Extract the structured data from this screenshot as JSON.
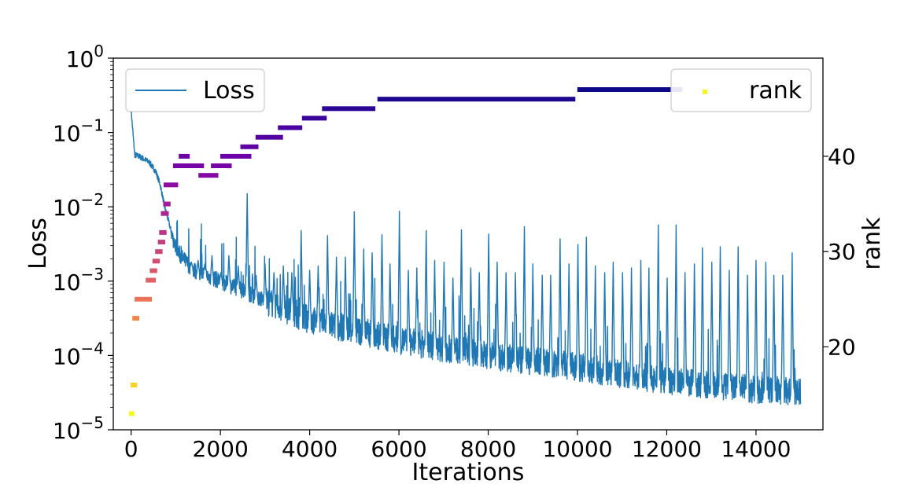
{
  "chart_data": {
    "type": "line",
    "xlabel": "Iterations",
    "ylabel_left": "Loss",
    "ylabel_right": "rank",
    "y_scale_left": "log",
    "xlim": [
      -400,
      15500
    ],
    "ylim_left": [
      1e-05,
      1
    ],
    "ylim_right": [
      11.3,
      50.3
    ],
    "x_ticks": [
      0,
      2000,
      4000,
      6000,
      8000,
      10000,
      12000,
      14000
    ],
    "x_tick_labels": [
      "0",
      "2000",
      "4000",
      "6000",
      "8000",
      "10000",
      "12000",
      "14000"
    ],
    "y_left_ticks": [
      {
        "base": "10",
        "exp": "0",
        "value": 1
      },
      {
        "base": "10",
        "exp": "−1",
        "value": 0.1
      },
      {
        "base": "10",
        "exp": "−2",
        "value": 0.01
      },
      {
        "base": "10",
        "exp": "−3",
        "value": 0.001
      },
      {
        "base": "10",
        "exp": "−4",
        "value": 0.0001
      },
      {
        "base": "10",
        "exp": "−5",
        "value": 1e-05
      }
    ],
    "y_right_ticks": [
      20,
      30,
      40
    ],
    "legend_left": {
      "label": "Loss",
      "placement": "upper-left",
      "color": "#1f77b4"
    },
    "legend_right": {
      "label": "rank",
      "placement": "upper-right",
      "color": "#f0f921"
    },
    "grid": false,
    "loss_series": {
      "name": "Loss",
      "color": "#1f77b4",
      "x_max": 15000,
      "anchors": [
        [
          0,
          0.2
        ],
        [
          80,
          0.05
        ],
        [
          200,
          0.047
        ],
        [
          400,
          0.04
        ],
        [
          550,
          0.03
        ],
        [
          650,
          0.02
        ],
        [
          750,
          0.01
        ],
        [
          850,
          0.006
        ],
        [
          950,
          0.0035
        ],
        [
          1100,
          0.0022
        ],
        [
          1400,
          0.0014
        ],
        [
          2000,
          0.001
        ],
        [
          3000,
          0.00055
        ],
        [
          4000,
          0.0003
        ],
        [
          5000,
          0.00022
        ],
        [
          6000,
          0.00016
        ],
        [
          8000,
          0.0001
        ],
        [
          10000,
          7e-05
        ],
        [
          12000,
          4.5e-05
        ],
        [
          14000,
          3.5e-05
        ],
        [
          15000,
          3.2e-05
        ]
      ],
      "spikes": [
        [
          1180,
          0.0016
        ],
        [
          1350,
          0.0018
        ],
        [
          1500,
          0.0019
        ],
        [
          1650,
          0.0017
        ],
        [
          1810,
          0.0022
        ],
        [
          2010,
          0.0013
        ],
        [
          2190,
          0.0022
        ],
        [
          2400,
          0.0016
        ],
        [
          2600,
          0.015
        ],
        [
          2800,
          0.0012
        ],
        [
          3000,
          0.0017
        ],
        [
          3200,
          0.0013
        ],
        [
          3410,
          0.0016
        ],
        [
          3600,
          0.0013
        ],
        [
          3810,
          0.0048
        ],
        [
          4000,
          0.0014
        ],
        [
          4190,
          0.0016
        ],
        [
          4400,
          0.0041
        ],
        [
          4600,
          0.0021
        ],
        [
          4800,
          0.0021
        ],
        [
          5000,
          0.0086
        ],
        [
          5210,
          0.0027
        ],
        [
          5400,
          0.0024
        ],
        [
          5620,
          0.0042
        ],
        [
          5800,
          0.0017
        ],
        [
          6010,
          0.0087
        ],
        [
          6210,
          0.0014
        ],
        [
          6400,
          0.0015
        ],
        [
          6610,
          0.0048
        ],
        [
          6800,
          0.0019
        ],
        [
          7010,
          0.0018
        ],
        [
          7210,
          0.0011
        ],
        [
          7400,
          0.0049
        ],
        [
          7610,
          0.0015
        ],
        [
          7800,
          0.0013
        ],
        [
          8010,
          0.0043
        ],
        [
          8200,
          0.0018
        ],
        [
          8400,
          0.0013
        ],
        [
          8610,
          0.0013
        ],
        [
          8810,
          0.0054
        ],
        [
          9000,
          0.0017
        ],
        [
          9210,
          0.0012
        ],
        [
          9400,
          0.0012
        ],
        [
          9610,
          0.0037
        ],
        [
          9810,
          0.0017
        ],
        [
          10010,
          0.0031
        ],
        [
          10200,
          0.0039
        ],
        [
          10400,
          0.0016
        ],
        [
          10610,
          0.0013
        ],
        [
          10800,
          0.0018
        ],
        [
          11010,
          0.0013
        ],
        [
          11210,
          0.0015
        ],
        [
          11420,
          0.0019
        ],
        [
          11600,
          0.0015
        ],
        [
          11810,
          0.0057
        ],
        [
          12010,
          0.0011
        ],
        [
          12210,
          0.0057
        ],
        [
          12410,
          0.0013
        ],
        [
          12620,
          0.0017
        ],
        [
          12800,
          0.0028
        ],
        [
          13010,
          0.0018
        ],
        [
          13200,
          0.0029
        ],
        [
          13400,
          0.0014
        ],
        [
          13600,
          0.0029
        ],
        [
          13810,
          0.0012
        ],
        [
          14000,
          0.0019
        ],
        [
          14220,
          0.0018
        ],
        [
          14400,
          0.0012
        ],
        [
          14600,
          0.0012
        ],
        [
          14810,
          0.0024
        ]
      ]
    },
    "rank_series": {
      "name": "rank",
      "colormap": "plasma",
      "segments": [
        {
          "x0": 0,
          "x1": 20,
          "rank": 13
        },
        {
          "x0": 40,
          "x1": 80,
          "rank": 16
        },
        {
          "x0": 80,
          "x1": 130,
          "rank": 23
        },
        {
          "x0": 130,
          "x1": 410,
          "rank": 25
        },
        {
          "x0": 380,
          "x1": 500,
          "rank": 27
        },
        {
          "x0": 470,
          "x1": 530,
          "rank": 28
        },
        {
          "x0": 530,
          "x1": 590,
          "rank": 29
        },
        {
          "x0": 590,
          "x1": 650,
          "rank": 30
        },
        {
          "x0": 650,
          "x1": 710,
          "rank": 31
        },
        {
          "x0": 680,
          "x1": 740,
          "rank": 32
        },
        {
          "x0": 720,
          "x1": 790,
          "rank": 34
        },
        {
          "x0": 770,
          "x1": 830,
          "rank": 35
        },
        {
          "x0": 780,
          "x1": 1000,
          "rank": 37
        },
        {
          "x0": 990,
          "x1": 1200,
          "rank": 39
        },
        {
          "x0": 1120,
          "x1": 1260,
          "rank": 40
        },
        {
          "x0": 1270,
          "x1": 1580,
          "rank": 39
        },
        {
          "x0": 1560,
          "x1": 1900,
          "rank": 38
        },
        {
          "x0": 1840,
          "x1": 2200,
          "rank": 39
        },
        {
          "x0": 2050,
          "x1": 2640,
          "rank": 40
        },
        {
          "x0": 2500,
          "x1": 2800,
          "rank": 41
        },
        {
          "x0": 2840,
          "x1": 3350,
          "rank": 42
        },
        {
          "x0": 3340,
          "x1": 3780,
          "rank": 43
        },
        {
          "x0": 3880,
          "x1": 4330,
          "rank": 44
        },
        {
          "x0": 4330,
          "x1": 5420,
          "rank": 45
        },
        {
          "x0": 5570,
          "x1": 9900,
          "rank": 46
        },
        {
          "x0": 10050,
          "x1": 12300,
          "rank": 47
        }
      ]
    }
  }
}
